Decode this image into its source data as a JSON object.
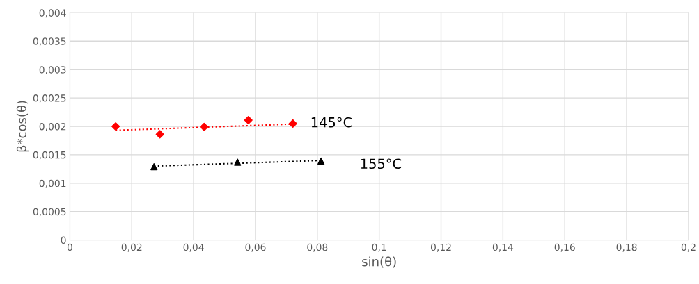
{
  "chart_data": {
    "type": "scatter",
    "xlabel": "sin(θ)",
    "ylabel": "β*cos(θ)",
    "xlim": [
      0,
      0.2
    ],
    "ylim": [
      0,
      0.004
    ],
    "xticks": [
      0,
      {
        "value": 0.02,
        "label": "0,02"
      },
      {
        "value": 0.04,
        "label": "0,04"
      },
      {
        "value": 0.06,
        "label": "0,06"
      },
      {
        "value": 0.08,
        "label": "0,08"
      },
      {
        "value": 0.1,
        "label": "0,1"
      },
      {
        "value": 0.12,
        "label": "0,12"
      },
      {
        "value": 0.14,
        "label": "0,14"
      },
      {
        "value": 0.16,
        "label": "0,16"
      },
      {
        "value": 0.18,
        "label": "0,18"
      },
      {
        "value": 0.2,
        "label": "0,2"
      }
    ],
    "yticks": [
      0,
      {
        "value": 0.0005,
        "label": "0,0005"
      },
      {
        "value": 0.001,
        "label": "0,001"
      },
      {
        "value": 0.0015,
        "label": "0,0015"
      },
      {
        "value": 0.002,
        "label": "0,002"
      },
      {
        "value": 0.0025,
        "label": "0,0025"
      },
      {
        "value": 0.003,
        "label": "0,003"
      },
      {
        "value": 0.0035,
        "label": "0,0035"
      },
      {
        "value": 0.004,
        "label": "0,004"
      }
    ],
    "grid": true,
    "series": [
      {
        "type": "line",
        "color": "#ff0000",
        "line_style": "dotted",
        "marker": "none",
        "x": [
          0.0148,
          0.0721
        ],
        "values": [
          0.00193,
          0.00204
        ]
      },
      {
        "type": "line",
        "color": "#000000",
        "line_style": "dotted",
        "marker": "none",
        "x": [
          0.0272,
          0.0812
        ],
        "values": [
          0.0013,
          0.0014
        ]
      },
      {
        "name": "145°C",
        "color": "#ff0000",
        "marker": "diamond",
        "x": [
          0.0148,
          0.0291,
          0.0434,
          0.0577,
          0.0721
        ],
        "values": [
          0.002,
          0.00186,
          0.00199,
          0.00211,
          0.00205
        ]
      },
      {
        "name": "155°C",
        "color": "#000000",
        "marker": "triangle",
        "x": [
          0.0272,
          0.0542,
          0.0812
        ],
        "values": [
          0.00129,
          0.00137,
          0.00139
        ]
      }
    ]
  }
}
